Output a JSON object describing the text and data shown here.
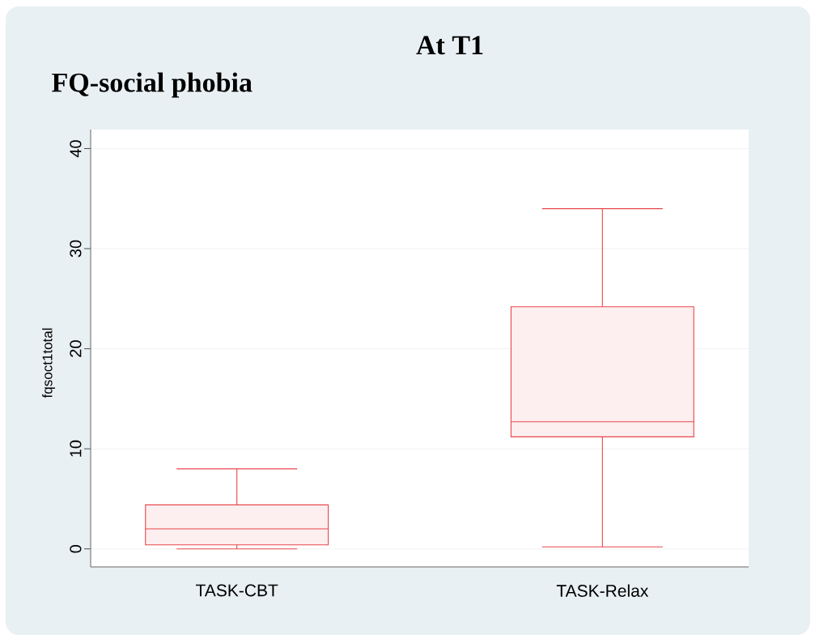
{
  "chart_data": {
    "type": "box",
    "title": "At T1",
    "subtitle": "FQ-social phobia",
    "ylabel": "fqsoct1total",
    "categories": [
      "TASK-CBT",
      "TASK-Relax"
    ],
    "series": [
      {
        "color": "#e8474c",
        "boxes": [
          {
            "low": 0,
            "q1": 0.4,
            "median": 2,
            "q3": 4.4,
            "high": 8
          },
          {
            "low": 0.2,
            "q1": 11.2,
            "median": 12.7,
            "q3": 24.2,
            "high": 34
          }
        ]
      }
    ],
    "ylim": [
      -1.8,
      41.9
    ],
    "yticks": [
      0,
      10,
      20,
      30,
      40
    ],
    "grid": "y"
  }
}
